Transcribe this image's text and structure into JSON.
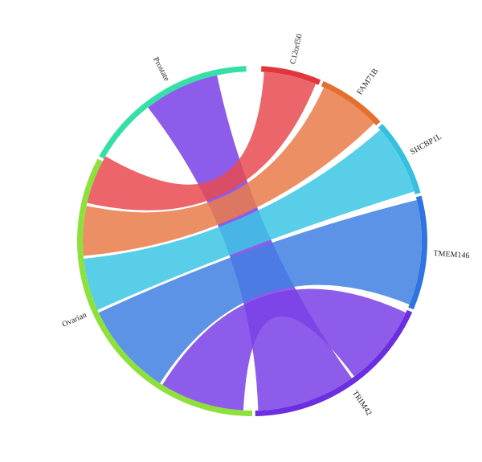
{
  "nodes": [
    {
      "id": "c12orf50",
      "label": "C12orf50",
      "color": "#e2363d"
    },
    {
      "id": "fam71b",
      "label": "FAM71B",
      "color": "#e4702f"
    },
    {
      "id": "shcbp1l",
      "label": "SHCBP1L",
      "color": "#35c0e0"
    },
    {
      "id": "tmem146",
      "label": "TMEM146",
      "color": "#2f74e0"
    },
    {
      "id": "trim42",
      "label": "TRIM42",
      "color": "#6b2ee0"
    },
    {
      "id": "ovarian",
      "label": "Ovarian",
      "color": "#8ee03a"
    },
    {
      "id": "prostate",
      "label": "Prostate",
      "color": "#35e0a8"
    }
  ],
  "links": [
    {
      "source": "prostate",
      "target": "trim42",
      "color": "#7a3fe6"
    },
    {
      "source": "ovarian",
      "target": "c12orf50",
      "color": "#e84a50"
    },
    {
      "source": "ovarian",
      "target": "fam71b",
      "color": "#ea7b4a"
    },
    {
      "source": "ovarian",
      "target": "shcbp1l",
      "color": "#3cc6e4"
    },
    {
      "source": "ovarian",
      "target": "tmem146",
      "color": "#3f80e2"
    },
    {
      "source": "ovarian",
      "target": "trim42",
      "color": "#7a3fe6"
    }
  ]
}
